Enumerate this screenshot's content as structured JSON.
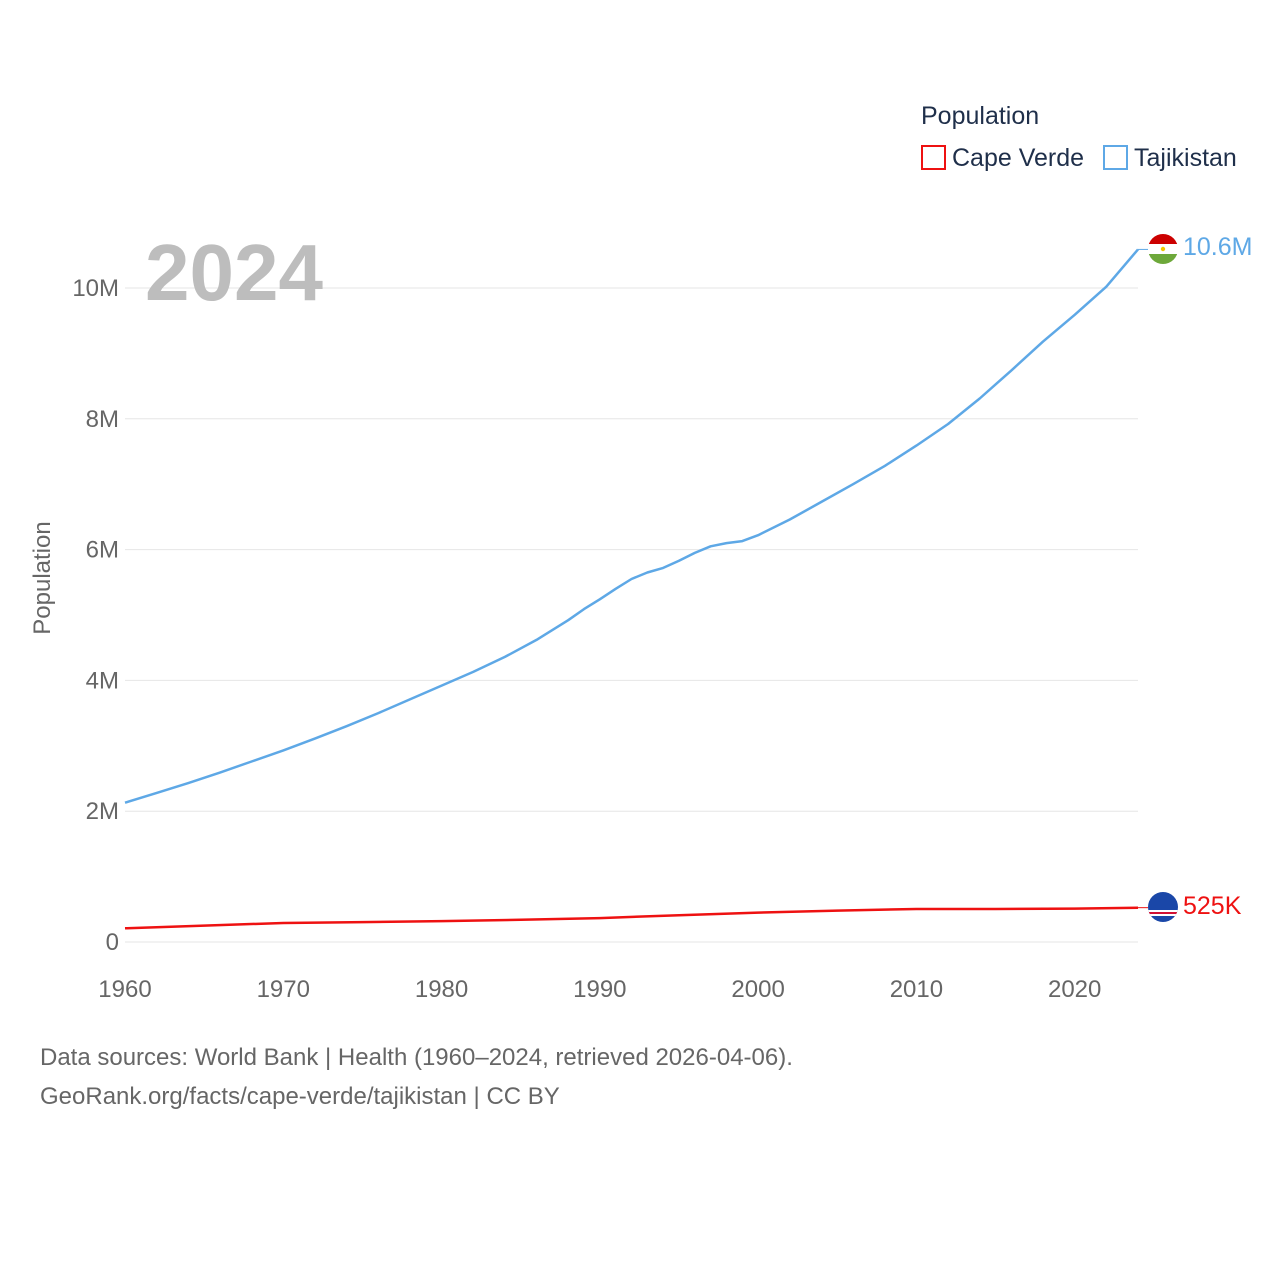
{
  "chart_data": {
    "type": "line",
    "year_label": "2024",
    "ylabel": "Population",
    "ylim": [
      0,
      11000000
    ],
    "xlim": [
      1960,
      2024
    ],
    "yticks": [
      {
        "value": 0,
        "label": "0"
      },
      {
        "value": 2000000,
        "label": "2M"
      },
      {
        "value": 4000000,
        "label": "4M"
      },
      {
        "value": 6000000,
        "label": "6M"
      },
      {
        "value": 8000000,
        "label": "8M"
      },
      {
        "value": 10000000,
        "label": "10M"
      }
    ],
    "xticks": [
      {
        "value": 1960,
        "label": "1960"
      },
      {
        "value": 1970,
        "label": "1970"
      },
      {
        "value": 1980,
        "label": "1980"
      },
      {
        "value": 1990,
        "label": "1990"
      },
      {
        "value": 2000,
        "label": "2000"
      },
      {
        "value": 2010,
        "label": "2010"
      },
      {
        "value": 2020,
        "label": "2020"
      }
    ],
    "legend": {
      "title": "Population"
    },
    "series": [
      {
        "name": "Cape Verde",
        "color": "#ee1111",
        "end_label": "525K",
        "x": [
          1960,
          1965,
          1970,
          1975,
          1980,
          1985,
          1990,
          1995,
          2000,
          2005,
          2010,
          2015,
          2020,
          2024
        ],
        "values": [
          210000,
          250000,
          290000,
          305000,
          320000,
          340000,
          365000,
          410000,
          450000,
          480000,
          505000,
          505000,
          510000,
          525000
        ]
      },
      {
        "name": "Tajikistan",
        "color": "#5ea8e6",
        "end_label": "10.6M",
        "x": [
          1960,
          1962,
          1964,
          1966,
          1968,
          1970,
          1972,
          1974,
          1976,
          1978,
          1980,
          1982,
          1984,
          1986,
          1988,
          1989,
          1990,
          1991,
          1992,
          1993,
          1994,
          1995,
          1996,
          1997,
          1998,
          1999,
          2000,
          2002,
          2004,
          2006,
          2008,
          2010,
          2012,
          2014,
          2016,
          2018,
          2020,
          2022,
          2024
        ],
        "values": [
          2130000,
          2280000,
          2430000,
          2590000,
          2760000,
          2930000,
          3110000,
          3300000,
          3500000,
          3710000,
          3920000,
          4130000,
          4360000,
          4620000,
          4920000,
          5090000,
          5240000,
          5400000,
          5550000,
          5650000,
          5720000,
          5830000,
          5950000,
          6050000,
          6100000,
          6130000,
          6220000,
          6460000,
          6730000,
          7000000,
          7280000,
          7590000,
          7920000,
          8310000,
          8740000,
          9180000,
          9590000,
          10020000,
          10590000
        ]
      }
    ]
  },
  "source": {
    "line1": "Data sources: World Bank | Health (1960–2024, retrieved 2026-04-06).",
    "line2": "GeoRank.org/facts/cape-verde/tajikistan | CC BY"
  }
}
